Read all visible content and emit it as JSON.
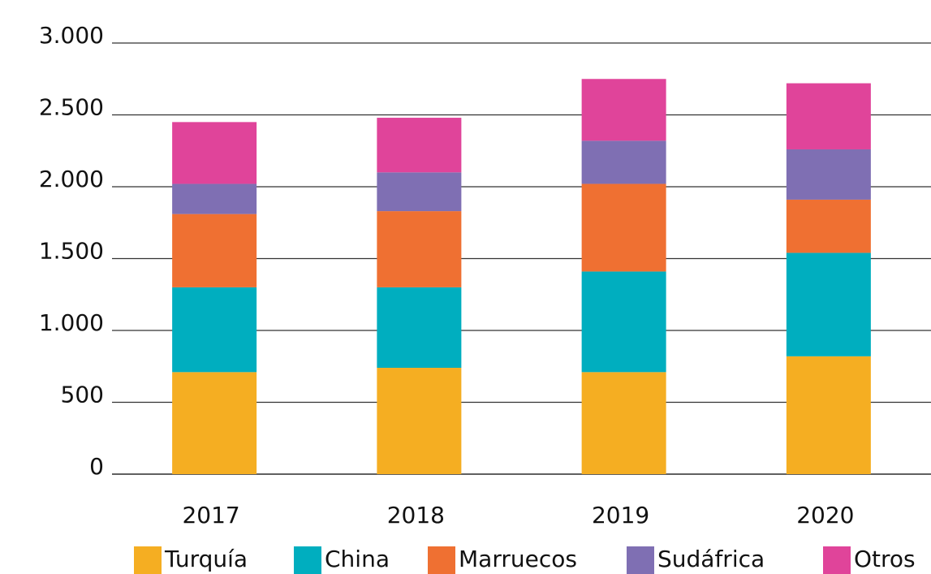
{
  "chart_data": {
    "type": "stacked_bar",
    "categories": [
      "2017",
      "2018",
      "2019",
      "2020"
    ],
    "series": [
      {
        "name": "Turquía",
        "color": "#f5ae22",
        "values": [
          710,
          740,
          710,
          820
        ]
      },
      {
        "name": "China",
        "color": "#00aebf",
        "values": [
          590,
          560,
          700,
          720
        ]
      },
      {
        "name": "Marruecos",
        "color": "#ef7032",
        "values": [
          510,
          530,
          610,
          370
        ]
      },
      {
        "name": "Sudáfrica",
        "color": "#7f6fb3",
        "values": [
          210,
          270,
          300,
          350
        ]
      },
      {
        "name": "Otros",
        "color": "#e0449a",
        "values": [
          430,
          380,
          430,
          460
        ]
      }
    ],
    "ylim": [
      0,
      3000
    ],
    "yticks": [
      0,
      500,
      {
        "value": 1000,
        "label": "1.000"
      },
      {
        "value": 1500,
        "label": "1.500"
      },
      {
        "value": 2000,
        "label": "2.000"
      },
      {
        "value": 2500,
        "label": "2.500"
      },
      {
        "value": 3000,
        "label": "3.000"
      }
    ],
    "grid": true,
    "legend": "bottom"
  }
}
